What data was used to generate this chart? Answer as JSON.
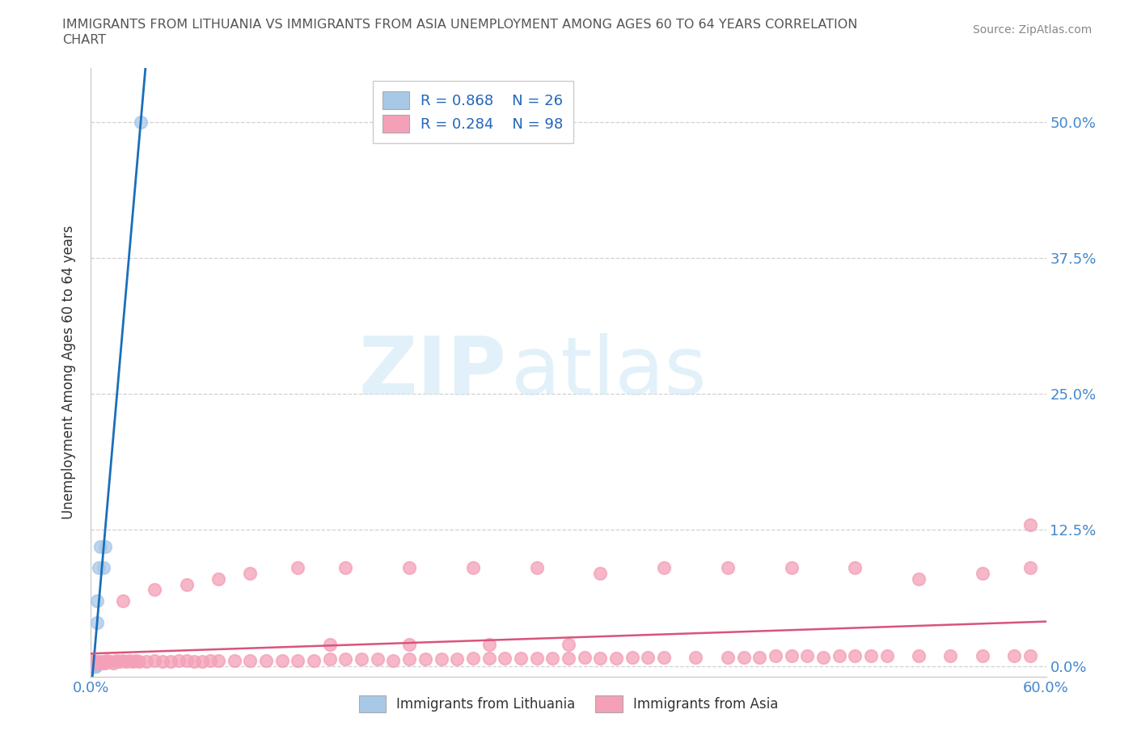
{
  "title_line1": "IMMIGRANTS FROM LITHUANIA VS IMMIGRANTS FROM ASIA UNEMPLOYMENT AMONG AGES 60 TO 64 YEARS CORRELATION",
  "title_line2": "CHART",
  "source": "Source: ZipAtlas.com",
  "ylabel": "Unemployment Among Ages 60 to 64 years",
  "xlim": [
    0.0,
    0.6
  ],
  "ylim": [
    -0.01,
    0.55
  ],
  "yticklabels": [
    "0.0%",
    "12.5%",
    "25.0%",
    "37.5%",
    "50.0%"
  ],
  "ytick_vals": [
    0.0,
    0.125,
    0.25,
    0.375,
    0.5
  ],
  "background_color": "#ffffff",
  "grid_color": "#cccccc",
  "legend_R1": "R = 0.868",
  "legend_N1": "N = 26",
  "legend_R2": "R = 0.284",
  "legend_N2": "N = 98",
  "blue_color": "#a8c8e8",
  "pink_color": "#f4a0b8",
  "blue_line_color": "#1a6fba",
  "pink_line_color": "#d9547a",
  "axis_tick_color": "#4488cc",
  "lith_x": [
    0.001,
    0.001,
    0.001,
    0.001,
    0.001,
    0.001,
    0.001,
    0.001,
    0.001,
    0.001,
    0.002,
    0.002,
    0.002,
    0.002,
    0.002,
    0.002,
    0.003,
    0.003,
    0.003,
    0.004,
    0.004,
    0.005,
    0.006,
    0.008,
    0.009,
    0.031
  ],
  "lith_y": [
    0.0,
    0.0,
    0.0,
    0.0,
    0.0,
    0.0,
    0.0,
    0.0,
    0.0,
    0.0,
    0.0,
    0.0,
    0.0,
    0.0,
    0.0,
    0.0,
    0.0,
    0.0,
    0.0,
    0.04,
    0.06,
    0.09,
    0.11,
    0.09,
    0.11,
    0.5
  ],
  "asia_x": [
    0.001,
    0.002,
    0.003,
    0.004,
    0.005,
    0.006,
    0.007,
    0.008,
    0.009,
    0.01,
    0.012,
    0.014,
    0.016,
    0.018,
    0.02,
    0.022,
    0.024,
    0.026,
    0.028,
    0.03,
    0.035,
    0.04,
    0.045,
    0.05,
    0.055,
    0.06,
    0.065,
    0.07,
    0.075,
    0.08,
    0.09,
    0.1,
    0.11,
    0.12,
    0.13,
    0.14,
    0.15,
    0.16,
    0.17,
    0.18,
    0.19,
    0.2,
    0.21,
    0.22,
    0.23,
    0.24,
    0.25,
    0.26,
    0.27,
    0.28,
    0.29,
    0.3,
    0.31,
    0.32,
    0.33,
    0.34,
    0.35,
    0.36,
    0.38,
    0.4,
    0.41,
    0.42,
    0.43,
    0.44,
    0.45,
    0.46,
    0.47,
    0.48,
    0.49,
    0.5,
    0.52,
    0.54,
    0.56,
    0.58,
    0.59,
    0.02,
    0.04,
    0.06,
    0.08,
    0.1,
    0.13,
    0.16,
    0.2,
    0.24,
    0.28,
    0.32,
    0.36,
    0.4,
    0.44,
    0.48,
    0.52,
    0.56,
    0.59,
    0.15,
    0.2,
    0.25,
    0.3,
    0.59
  ],
  "asia_y": [
    0.005,
    0.004,
    0.003,
    0.004,
    0.003,
    0.004,
    0.003,
    0.004,
    0.003,
    0.005,
    0.004,
    0.003,
    0.005,
    0.004,
    0.005,
    0.004,
    0.005,
    0.004,
    0.005,
    0.004,
    0.004,
    0.005,
    0.004,
    0.004,
    0.005,
    0.005,
    0.004,
    0.004,
    0.005,
    0.005,
    0.005,
    0.005,
    0.005,
    0.005,
    0.005,
    0.005,
    0.006,
    0.006,
    0.006,
    0.006,
    0.005,
    0.006,
    0.006,
    0.006,
    0.006,
    0.007,
    0.007,
    0.007,
    0.007,
    0.007,
    0.007,
    0.007,
    0.008,
    0.007,
    0.007,
    0.008,
    0.008,
    0.008,
    0.008,
    0.008,
    0.008,
    0.008,
    0.009,
    0.009,
    0.009,
    0.008,
    0.009,
    0.009,
    0.009,
    0.009,
    0.009,
    0.009,
    0.009,
    0.009,
    0.009,
    0.06,
    0.07,
    0.075,
    0.08,
    0.085,
    0.09,
    0.09,
    0.09,
    0.09,
    0.09,
    0.085,
    0.09,
    0.09,
    0.09,
    0.09,
    0.08,
    0.085,
    0.09,
    0.02,
    0.02,
    0.02,
    0.02,
    0.13
  ]
}
